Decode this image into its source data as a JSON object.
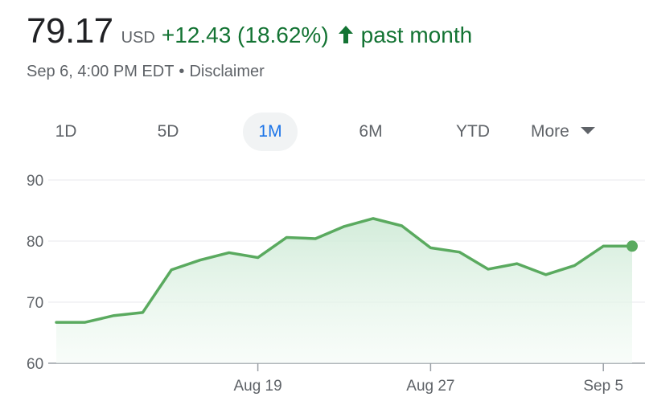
{
  "quote": {
    "price": "79.17",
    "currency": "USD",
    "change": "+12.43 (18.62%)",
    "period": "past month",
    "timestamp": "Sep 6, 4:00 PM EDT",
    "separator": "•",
    "disclaimer": "Disclaimer",
    "arrow_icon": "arrow-up-icon",
    "up_color": "#137333"
  },
  "range_tabs": [
    {
      "label": "1D",
      "active": false
    },
    {
      "label": "5D",
      "active": false
    },
    {
      "label": "1M",
      "active": true
    },
    {
      "label": "6M",
      "active": false
    },
    {
      "label": "YTD",
      "active": false
    }
  ],
  "more": {
    "label": "More",
    "icon": "caret-down-icon"
  },
  "chart_data": {
    "type": "area",
    "title": "",
    "xlabel": "",
    "ylabel": "",
    "ylim": [
      60,
      90
    ],
    "yticks": [
      60,
      70,
      80,
      90
    ],
    "x": [
      "Aug 8",
      "Aug 9",
      "Aug 12",
      "Aug 13",
      "Aug 14",
      "Aug 15",
      "Aug 16",
      "Aug 19",
      "Aug 20",
      "Aug 21",
      "Aug 22",
      "Aug 23",
      "Aug 26",
      "Aug 27",
      "Aug 28",
      "Aug 29",
      "Aug 30",
      "Sep 3",
      "Sep 4",
      "Sep 5",
      "Sep 6"
    ],
    "xticks": [
      "Aug 19",
      "Aug 27",
      "Sep 5"
    ],
    "series": [
      {
        "values": [
          66.7,
          66.7,
          67.8,
          68.3,
          75.3,
          76.9,
          78.1,
          77.3,
          80.6,
          80.4,
          82.4,
          83.7,
          82.5,
          78.9,
          78.2,
          75.4,
          76.3,
          74.5,
          76.0,
          79.17,
          79.17
        ]
      }
    ],
    "color": "#5aaa5f",
    "fill_color": "#e6f4ea",
    "grid": true,
    "baseline": 60
  }
}
